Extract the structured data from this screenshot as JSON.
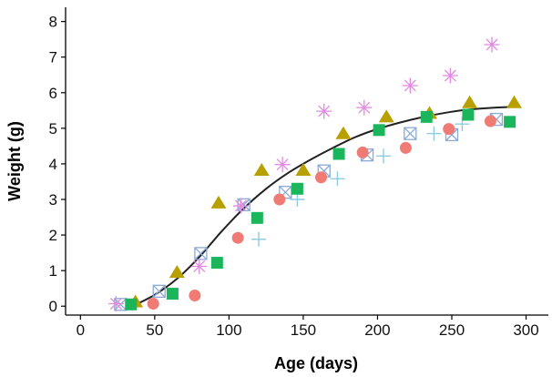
{
  "chart_data": {
    "type": "scatter",
    "title": "",
    "xlabel": "Age (days)",
    "ylabel": "Weight (g)",
    "xlim": [
      -10,
      315
    ],
    "ylim": [
      -0.25,
      8.4
    ],
    "x_ticks": [
      0,
      50,
      100,
      150,
      200,
      250,
      300
    ],
    "y_ticks": [
      0,
      1,
      2,
      3,
      4,
      5,
      6,
      7,
      8
    ],
    "grid": false,
    "legend": "none",
    "series": [
      {
        "marker": "triangle",
        "color": "#B8A000",
        "points": [
          [
            37,
            0.12
          ],
          [
            65,
            0.95
          ],
          [
            93,
            2.9
          ],
          [
            122,
            3.82
          ],
          [
            150,
            3.82
          ],
          [
            177,
            4.85
          ],
          [
            206,
            5.32
          ],
          [
            235,
            5.42
          ],
          [
            262,
            5.72
          ],
          [
            292,
            5.72
          ]
        ]
      },
      {
        "marker": "filled-square",
        "color": "#1BB55C",
        "points": [
          [
            34,
            0.05
          ],
          [
            62,
            0.35
          ],
          [
            92,
            1.22
          ],
          [
            119,
            2.48
          ],
          [
            146,
            3.3
          ],
          [
            174,
            4.28
          ],
          [
            201,
            4.95
          ],
          [
            233,
            5.32
          ],
          [
            261,
            5.38
          ],
          [
            289,
            5.18
          ]
        ]
      },
      {
        "marker": "circle",
        "color": "#F07B75",
        "points": [
          [
            49,
            0.07
          ],
          [
            77,
            0.3
          ],
          [
            106,
            1.92
          ],
          [
            134,
            3.0
          ],
          [
            162,
            3.62
          ],
          [
            190,
            4.32
          ],
          [
            219,
            4.45
          ],
          [
            248,
            4.98
          ],
          [
            276,
            5.2
          ]
        ]
      },
      {
        "marker": "boxed-x",
        "color": "#8AAAD4",
        "points": [
          [
            27,
            0.05
          ],
          [
            53,
            0.42
          ],
          [
            81,
            1.48
          ],
          [
            110,
            2.85
          ],
          [
            138,
            3.2
          ],
          [
            164,
            3.8
          ],
          [
            193,
            4.25
          ],
          [
            222,
            4.85
          ],
          [
            250,
            4.82
          ],
          [
            280,
            5.25
          ]
        ]
      },
      {
        "marker": "asterisk",
        "color": "#E08BE0",
        "points": [
          [
            24,
            0.07
          ],
          [
            80,
            1.12
          ],
          [
            108,
            2.82
          ],
          [
            136,
            3.98
          ],
          [
            164,
            5.48
          ],
          [
            191,
            5.58
          ],
          [
            222,
            6.2
          ],
          [
            249,
            6.48
          ],
          [
            277,
            7.35
          ]
        ]
      },
      {
        "marker": "plus",
        "color": "#8CCBE0",
        "points": [
          [
            120,
            1.88
          ],
          [
            146,
            3.0
          ],
          [
            173,
            3.58
          ],
          [
            204,
            4.22
          ],
          [
            238,
            4.85
          ],
          [
            257,
            5.12
          ]
        ]
      }
    ],
    "fit_curve": {
      "color": "#222222",
      "points": [
        [
          35,
          0
        ],
        [
          50,
          0.32
        ],
        [
          65,
          0.77
        ],
        [
          80,
          1.38
        ],
        [
          95,
          2.1
        ],
        [
          110,
          2.75
        ],
        [
          125,
          3.3
        ],
        [
          140,
          3.75
        ],
        [
          155,
          4.12
        ],
        [
          170,
          4.45
        ],
        [
          185,
          4.75
        ],
        [
          200,
          4.98
        ],
        [
          215,
          5.16
        ],
        [
          230,
          5.31
        ],
        [
          245,
          5.43
        ],
        [
          260,
          5.52
        ],
        [
          275,
          5.57
        ],
        [
          290,
          5.6
        ]
      ]
    }
  }
}
